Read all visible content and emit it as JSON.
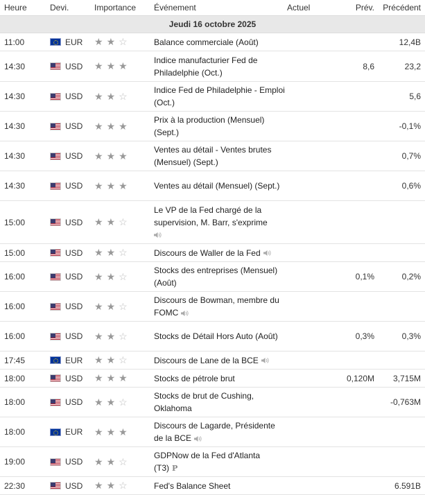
{
  "header": {
    "time": "Heure",
    "currency": "Devi.",
    "importance": "Importance",
    "event": "Événement",
    "actual": "Actuel",
    "forecast": "Prév.",
    "previous": "Précédent"
  },
  "day_label": "Jeudi 16 octobre 2025",
  "icons": {
    "star": "star-icon",
    "speaker": "speaker-icon",
    "preliminary": "preliminary-icon"
  },
  "rows": [
    {
      "time": "11:00",
      "cur": "EUR",
      "flag": "eu",
      "stars": 2,
      "event": "Balance commerciale (Août)",
      "actual": "",
      "forecast": "",
      "previous": "12,4B"
    },
    {
      "time": "14:30",
      "cur": "USD",
      "flag": "us",
      "stars": 3,
      "event": "Indice manufacturier Fed de Philadelphie (Oct.)",
      "actual": "",
      "forecast": "8,6",
      "previous": "23,2"
    },
    {
      "time": "14:30",
      "cur": "USD",
      "flag": "us",
      "stars": 2,
      "event": "Indice Fed de Philadelphie - Emploi (Oct.)",
      "actual": "",
      "forecast": "",
      "previous": "5,6"
    },
    {
      "time": "14:30",
      "cur": "USD",
      "flag": "us",
      "stars": 3,
      "event": "Prix à la production (Mensuel) (Sept.)",
      "actual": "",
      "forecast": "",
      "previous": "-0,1%"
    },
    {
      "time": "14:30",
      "cur": "USD",
      "flag": "us",
      "stars": 3,
      "event": "Ventes au détail - Ventes brutes (Mensuel) (Sept.)",
      "actual": "",
      "forecast": "",
      "previous": "0,7%"
    },
    {
      "time": "14:30",
      "cur": "USD",
      "flag": "us",
      "stars": 3,
      "event": "Ventes au détail (Mensuel) (Sept.)",
      "actual": "",
      "forecast": "",
      "previous": "0,6%"
    },
    {
      "time": "15:00",
      "cur": "USD",
      "flag": "us",
      "stars": 2,
      "event": "Le VP de la Fed chargé de la supervision, M. Barr, s'exprime",
      "speaker": true,
      "speaker_newline": true,
      "actual": "",
      "forecast": "",
      "previous": ""
    },
    {
      "time": "15:00",
      "cur": "USD",
      "flag": "us",
      "stars": 2,
      "event": "Discours de Waller de la Fed",
      "speaker": true,
      "actual": "",
      "forecast": "",
      "previous": ""
    },
    {
      "time": "16:00",
      "cur": "USD",
      "flag": "us",
      "stars": 2,
      "event": "Stocks des entreprises (Mensuel) (Août)",
      "actual": "",
      "forecast": "0,1%",
      "previous": "0,2%"
    },
    {
      "time": "16:00",
      "cur": "USD",
      "flag": "us",
      "stars": 2,
      "event": "Discours de Bowman, membre du FOMC",
      "speaker": true,
      "actual": "",
      "forecast": "",
      "previous": ""
    },
    {
      "time": "16:00",
      "cur": "USD",
      "flag": "us",
      "stars": 2,
      "event": "Stocks de Détail Hors Auto (Août)",
      "actual": "",
      "forecast": "0,3%",
      "previous": "0,3%"
    },
    {
      "time": "17:45",
      "cur": "EUR",
      "flag": "eu",
      "stars": 2,
      "event": "Discours de Lane de la BCE",
      "speaker": true,
      "actual": "",
      "forecast": "",
      "previous": ""
    },
    {
      "time": "18:00",
      "cur": "USD",
      "flag": "us",
      "stars": 3,
      "event": "Stocks de pétrole brut",
      "actual": "",
      "forecast": "0,120M",
      "previous": "3,715M"
    },
    {
      "time": "18:00",
      "cur": "USD",
      "flag": "us",
      "stars": 2,
      "event": "Stocks de brut de Cushing, Oklahoma",
      "actual": "",
      "forecast": "",
      "previous": "-0,763M"
    },
    {
      "time": "18:00",
      "cur": "EUR",
      "flag": "eu",
      "stars": 3,
      "event": "Discours de Lagarde, Présidente de la BCE",
      "speaker": true,
      "actual": "",
      "forecast": "",
      "previous": ""
    },
    {
      "time": "19:00",
      "cur": "USD",
      "flag": "us",
      "stars": 2,
      "event": "GDPNow de la Fed d'Atlanta (T3)",
      "preliminary": "P",
      "actual": "",
      "forecast": "",
      "previous": ""
    },
    {
      "time": "22:30",
      "cur": "USD",
      "flag": "us",
      "stars": 2,
      "event": "Fed's Balance Sheet",
      "actual": "",
      "forecast": "",
      "previous": "6.591B"
    }
  ]
}
